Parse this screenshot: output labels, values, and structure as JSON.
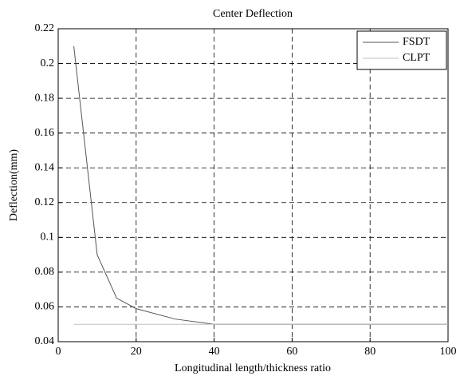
{
  "chart_data": {
    "type": "line",
    "title": "Center Deflection",
    "xlabel": "Longitudinal length/thickness ratio",
    "ylabel": "Deflection(mm)",
    "x": [
      4,
      10,
      15,
      20,
      30,
      40,
      50,
      60,
      70,
      80,
      90,
      100
    ],
    "series": [
      {
        "name": "FSDT",
        "color": "#555555",
        "values": [
          0.21,
          0.09,
          0.065,
          0.059,
          0.053,
          0.05,
          0.05,
          0.05,
          0.05,
          0.05,
          0.05,
          0.05
        ]
      },
      {
        "name": "CLPT",
        "color": "#c0c0c0",
        "values": [
          0.05,
          0.05,
          0.05,
          0.05,
          0.05,
          0.05,
          0.05,
          0.05,
          0.05,
          0.05,
          0.05,
          0.05
        ]
      }
    ],
    "xlim": [
      0,
      100
    ],
    "xticks": [
      0,
      20,
      40,
      60,
      80,
      100
    ],
    "ylim": [
      0.04,
      0.22
    ],
    "yticks": [
      0.04,
      0.06,
      0.08,
      0.1,
      0.12,
      0.14,
      0.16,
      0.18,
      0.2,
      0.22
    ],
    "grid": true,
    "legend": "northeast"
  }
}
